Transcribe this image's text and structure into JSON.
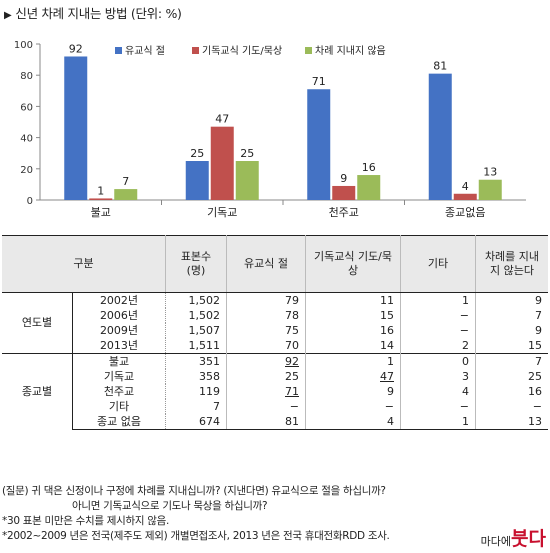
{
  "title": "신년 차례 지내는 방법 (단위: %)",
  "chart_data": {
    "type": "bar",
    "title": "신년 차례 지내는 방법 (단위: %)",
    "categories": [
      "불교",
      "기독교",
      "천주교",
      "종교없음"
    ],
    "series": [
      {
        "name": "유교식 절",
        "values": [
          92,
          25,
          71,
          81
        ],
        "color": "#4472c4"
      },
      {
        "name": "기독교식 기도/묵상",
        "values": [
          1,
          47,
          9,
          4
        ],
        "color": "#c0504d"
      },
      {
        "name": "차례 지내지 않음",
        "values": [
          7,
          25,
          16,
          13
        ],
        "color": "#9bbb59"
      }
    ],
    "ylim": [
      0,
      100
    ],
    "yticks": [
      0,
      20,
      40,
      60,
      80,
      100
    ],
    "grid": false,
    "legend": "top"
  },
  "table": {
    "headers": [
      "구분",
      "표본수 (명)",
      "유교식 절",
      "기독교식 기도/묵상",
      "기타",
      "차례를 지내지 않는다"
    ],
    "groups": [
      {
        "label": "연도별",
        "rows": [
          {
            "sub": "2002년",
            "n": "1,502",
            "c1": "79",
            "c2": "11",
            "c3": "1",
            "c4": "9"
          },
          {
            "sub": "2006년",
            "n": "1,502",
            "c1": "78",
            "c2": "15",
            "c3": "−",
            "c4": "7"
          },
          {
            "sub": "2009년",
            "n": "1,507",
            "c1": "75",
            "c2": "16",
            "c3": "−",
            "c4": "9"
          },
          {
            "sub": "2013년",
            "n": "1,511",
            "c1": "70",
            "c2": "14",
            "c3": "2",
            "c4": "15"
          }
        ]
      },
      {
        "label": "종교별",
        "rows": [
          {
            "sub": "불교",
            "n": "351",
            "c1": "92",
            "c2": "1",
            "c3": "0",
            "c4": "7"
          },
          {
            "sub": "기독교",
            "n": "358",
            "c1": "25",
            "c2": "47",
            "c3": "3",
            "c4": "25"
          },
          {
            "sub": "천주교",
            "n": "119",
            "c1": "71",
            "c2": "9",
            "c3": "4",
            "c4": "16"
          },
          {
            "sub": "기타",
            "n": "7",
            "c1": "−",
            "c2": "−",
            "c3": "−",
            "c4": "−"
          },
          {
            "sub": "종교 없음",
            "n": "674",
            "c1": "81",
            "c2": "4",
            "c3": "1",
            "c4": "13"
          }
        ]
      }
    ]
  },
  "notes": {
    "q1": "(질문) 귀 댁은 신정이나 구정에 차례를 지내십니까? (지낸다면) 유교식으로 절을 하십니까?",
    "q2": "아니면 기독교식으로 기도나 묵상을 하십니까?",
    "n1": "*30 표본 미만은 수치를 제시하지 않음.",
    "n2": "*2002~2009 년은 전국(제주도 제외) 개별면접조사, 2013 년은 전국 휴대전화RDD 조사."
  },
  "logo": {
    "small": "마다에",
    "big": "붓다"
  }
}
